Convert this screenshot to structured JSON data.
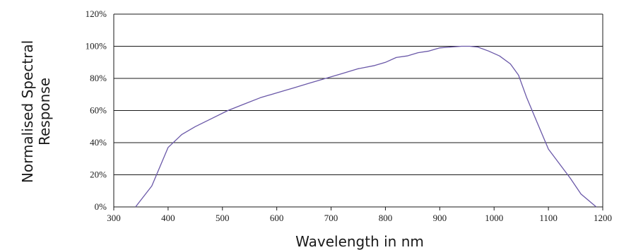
{
  "chart_data": {
    "type": "line",
    "title": "",
    "xlabel": "Wavelength in nm",
    "ylabel": [
      "Normalised Spectral",
      "Response"
    ],
    "xlim": [
      300,
      1200
    ],
    "ylim": [
      0,
      120
    ],
    "x_ticks": [
      "300",
      "400",
      "500",
      "600",
      "700",
      "800",
      "900",
      "1000",
      "1100",
      "1200"
    ],
    "y_ticks": [
      "0%",
      "20%",
      "40%",
      "60%",
      "80%",
      "100%",
      "120%"
    ],
    "grid": "horizontal",
    "legend": "none",
    "line_color": "#6a58a8",
    "series": [
      {
        "x": [
          340,
          370,
          400,
          425,
          450,
          480,
          510,
          540,
          570,
          600,
          630,
          660,
          690,
          720,
          750,
          780,
          800,
          820,
          840,
          860,
          880,
          900,
          920,
          940,
          955,
          970,
          990,
          1010,
          1030,
          1045,
          1060,
          1080,
          1100,
          1120,
          1140,
          1160,
          1188
        ],
        "y": [
          0,
          13,
          37,
          45,
          50,
          55,
          60,
          64,
          68,
          71,
          74,
          77,
          80,
          83,
          86,
          88,
          90,
          93,
          94,
          96,
          97,
          99,
          99.5,
          100,
          100,
          99.5,
          97,
          94,
          89,
          82,
          68,
          52,
          36,
          27,
          18,
          8,
          0
        ]
      }
    ]
  }
}
